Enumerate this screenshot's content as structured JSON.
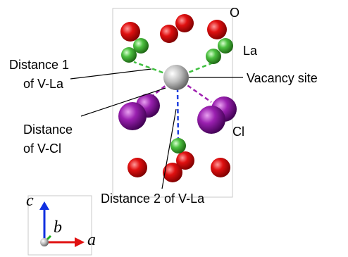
{
  "labels": {
    "o": "O",
    "la": "La",
    "cl": "Cl",
    "vacancy_site": "Vacancy site",
    "distance_1": [
      "Distance 1",
      "of V-La"
    ],
    "distance_v_cl": [
      "Distance",
      "of V-Cl"
    ],
    "distance_2": "Distance 2 of V-La"
  },
  "axes": {
    "c": "c",
    "b": "b",
    "a": "a"
  }
}
